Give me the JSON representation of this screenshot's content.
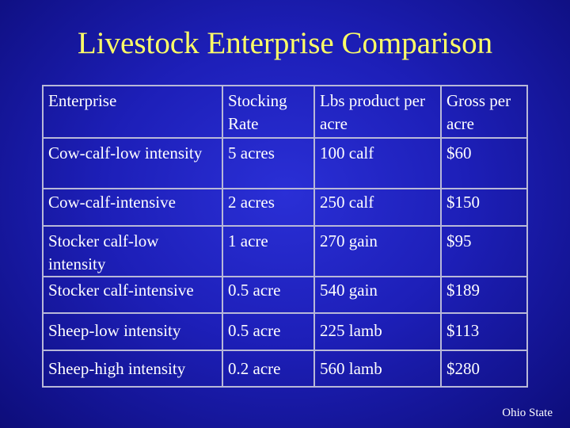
{
  "title": "Livestock Enterprise Comparison",
  "table": {
    "headers": [
      "Enterprise",
      "Stocking Rate",
      "Lbs product per acre",
      "Gross per acre"
    ],
    "rows": [
      [
        "Cow-calf-low intensity",
        "5 acres",
        "100 calf",
        "$60"
      ],
      [
        "Cow-calf-intensive",
        "2 acres",
        "250 calf",
        "$150"
      ],
      [
        "Stocker calf-low intensity",
        "1 acre",
        "270 gain",
        "$95"
      ],
      [
        "Stocker calf-intensive",
        "0.5 acre",
        "540 gain",
        "$189"
      ],
      [
        "Sheep-low intensity",
        "0.5 acre",
        "225 lamb",
        "$113"
      ],
      [
        "Sheep-high intensity",
        "0.2 acre",
        "560 lamb",
        "$280"
      ]
    ]
  },
  "footer": "Ohio State",
  "colors": {
    "background": "#1d1fb8",
    "title": "#ffff66",
    "text": "#ffffff",
    "grid": "#b8b8d8"
  }
}
